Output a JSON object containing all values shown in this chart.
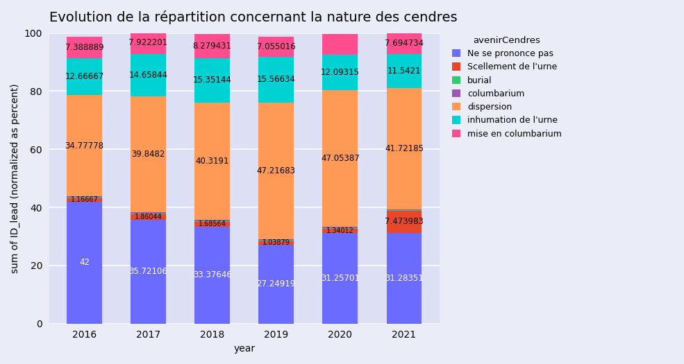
{
  "title": "Evolution de la répartition concernant la nature des cendres",
  "xlabel": "year",
  "ylabel": "sum of ID_lead (normalized as percent)",
  "legend_title": "avenirCendres",
  "years": [
    2016,
    2017,
    2018,
    2019,
    2020,
    2021
  ],
  "categories": [
    "Ne se prononce pas",
    "Scellement de l'urne",
    "burial",
    "columbarium",
    "dispersion",
    "inhumation de l'urne",
    "mise en columbarium"
  ],
  "colors": [
    "#6b6bff",
    "#e8472a",
    "#2ecc71",
    "#9b59b6",
    "#ff9955",
    "#00d2d3",
    "#ff4d8f"
  ],
  "values": {
    "Ne se prononce pas": [
      42.0,
      35.72106,
      33.37646,
      27.24919,
      31.25701,
      31.28351
    ],
    "Scellement de l'urne": [
      1.16667,
      1.86044,
      1.68564,
      1.03879,
      1.34012,
      7.473983
    ],
    "burial": [
      0.22222,
      0.22222,
      0.22222,
      0.22222,
      0.22222,
      0.22222
    ],
    "columbarium": [
      0.44444,
      0.44444,
      0.44444,
      0.44444,
      0.44444,
      0.44444
    ],
    "dispersion": [
      34.77778,
      39.8482,
      40.3191,
      47.21683,
      47.05387,
      41.72185
    ],
    "inhumation de l'urne": [
      12.66667,
      14.65844,
      15.35144,
      15.56634,
      12.09315,
      11.5421
    ],
    "mise en columbarium": [
      7.388889,
      7.922201,
      8.279431,
      7.055016,
      7.35585,
      7.694734
    ]
  },
  "show_labels": {
    "Ne se prononce pas": [
      true,
      true,
      true,
      true,
      true,
      true
    ],
    "Scellement de l'urne": [
      true,
      true,
      true,
      true,
      true,
      true
    ],
    "burial": [
      false,
      false,
      false,
      false,
      false,
      false
    ],
    "columbarium": [
      false,
      false,
      false,
      false,
      false,
      false
    ],
    "dispersion": [
      true,
      true,
      true,
      true,
      true,
      true
    ],
    "inhumation de l'urne": [
      true,
      true,
      true,
      true,
      true,
      true
    ],
    "mise en columbarium": [
      true,
      true,
      true,
      true,
      false,
      true
    ]
  },
  "label_texts": {
    "Ne se prononce pas": [
      "42",
      "35.72106",
      "33.37646",
      "27.24919",
      "31.25701",
      "31.28351"
    ],
    "Scellement de l'urne": [
      "1.16667",
      "1.86044",
      "1.68564",
      "1.03879",
      "1.34012",
      "7.473983"
    ],
    "burial": [
      "",
      "",
      "",
      "",
      "",
      ""
    ],
    "columbarium": [
      "",
      "",
      "",
      "",
      "",
      ""
    ],
    "dispersion": [
      "34.77778",
      "39.8482",
      "40.3191",
      "47.21683",
      "47.05387",
      "41.72185"
    ],
    "inhumation de l'urne": [
      "12.66667",
      "14.65844",
      "15.35144",
      "15.56634",
      "12.09315",
      "11.5421"
    ],
    "mise en columbarium": [
      "7.388889",
      "7.922201",
      "8.279431",
      "7.055016",
      "",
      "7.694734"
    ]
  },
  "label_colors": {
    "Ne se prononce pas": "white",
    "Scellement de l'urne": "black",
    "burial": "black",
    "columbarium": "black",
    "dispersion": "black",
    "inhumation de l'urne": "black",
    "mise en columbarium": "black"
  },
  "ylim": [
    0,
    100
  ],
  "fig_bg": "#eaecf8",
  "ax_bg": "#dde0f5",
  "bar_width": 0.55,
  "title_fontsize": 14,
  "axis_fontsize": 10,
  "tick_fontsize": 10,
  "label_fontsize": 8.5
}
